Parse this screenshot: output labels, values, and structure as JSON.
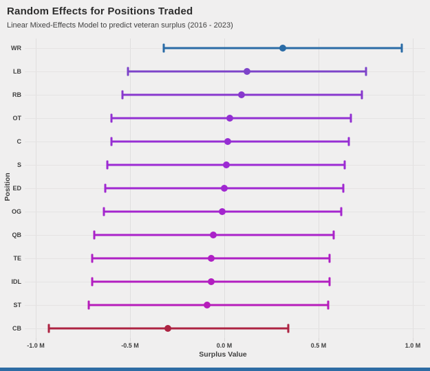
{
  "page": {
    "background_color": "#f0efef",
    "bottom_bar_color": "#2e6ca4"
  },
  "header": {
    "title": "Random Effects for Positions Traded",
    "subtitle": "Linear Mixed-Effects Model to predict veteran surplus (2016 - 2023)"
  },
  "chart_data": {
    "type": "scatter",
    "subtype": "dot-and-error-bar (random effects caterpillar plot)",
    "title": "Random Effects for Positions Traded",
    "subtitle": "Linear Mixed-Effects Model to predict veteran surplus (2016 - 2023)",
    "xlabel": "Surplus Value",
    "ylabel": "Position",
    "xlim": [
      -1.07,
      1.07
    ],
    "grid": true,
    "legend": false,
    "x_ticks": [
      {
        "value": -1.0,
        "label": "-1.0 M"
      },
      {
        "value": -0.5,
        "label": "-0.5 M"
      },
      {
        "value": 0.0,
        "label": "0.0 M"
      },
      {
        "value": 0.5,
        "label": "0.5 M"
      },
      {
        "value": 1.0,
        "label": "1.0 M"
      }
    ],
    "categories": [
      "WR",
      "LB",
      "RB",
      "OT",
      "C",
      "S",
      "ED",
      "OG",
      "QB",
      "TE",
      "IDL",
      "ST",
      "CB"
    ],
    "series": [
      {
        "category": "WR",
        "estimate": 0.31,
        "ci_low": -0.32,
        "ci_high": 0.94,
        "color": "#2a6ba6"
      },
      {
        "category": "LB",
        "estimate": 0.12,
        "ci_low": -0.51,
        "ci_high": 0.75,
        "color": "#7d43c9"
      },
      {
        "category": "RB",
        "estimate": 0.09,
        "ci_low": -0.54,
        "ci_high": 0.73,
        "color": "#8838cd"
      },
      {
        "category": "OT",
        "estimate": 0.03,
        "ci_low": -0.6,
        "ci_high": 0.67,
        "color": "#9230d2"
      },
      {
        "category": "C",
        "estimate": 0.02,
        "ci_low": -0.6,
        "ci_high": 0.66,
        "color": "#962ed3"
      },
      {
        "category": "S",
        "estimate": 0.01,
        "ci_low": -0.62,
        "ci_high": 0.64,
        "color": "#9c2ad3"
      },
      {
        "category": "ED",
        "estimate": 0.0,
        "ci_low": -0.63,
        "ci_high": 0.63,
        "color": "#a027d1"
      },
      {
        "category": "OG",
        "estimate": -0.01,
        "ci_low": -0.64,
        "ci_high": 0.62,
        "color": "#a425ce"
      },
      {
        "category": "QB",
        "estimate": -0.06,
        "ci_low": -0.69,
        "ci_high": 0.58,
        "color": "#aa22c9"
      },
      {
        "category": "TE",
        "estimate": -0.07,
        "ci_low": -0.7,
        "ci_high": 0.56,
        "color": "#ae20c4"
      },
      {
        "category": "IDL",
        "estimate": -0.07,
        "ci_low": -0.7,
        "ci_high": 0.56,
        "color": "#b21ec0"
      },
      {
        "category": "ST",
        "estimate": -0.09,
        "ci_low": -0.72,
        "ci_high": 0.55,
        "color": "#b61cba"
      },
      {
        "category": "CB",
        "estimate": -0.3,
        "ci_low": -0.93,
        "ci_high": 0.34,
        "color": "#ad2342"
      }
    ]
  }
}
